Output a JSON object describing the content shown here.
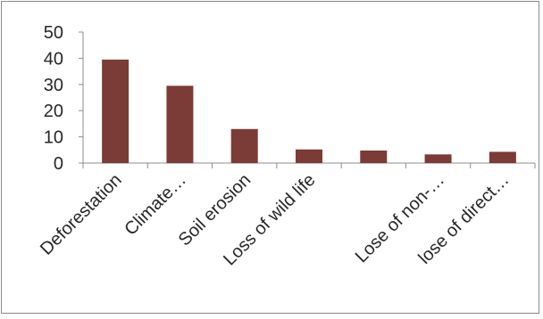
{
  "chart_data": {
    "type": "bar",
    "categories": [
      "Deforestation",
      "Climate…",
      "Soil erosion",
      "Loss of wild life",
      "",
      "Lose of non-…",
      "lose of direct…"
    ],
    "values": [
      39.5,
      29.5,
      13,
      5.2,
      4.8,
      3.3,
      4.3
    ],
    "title": "",
    "xlabel": "",
    "ylabel": "",
    "ylim": [
      0,
      50
    ],
    "yticks": [
      "0",
      "10",
      "20",
      "30",
      "40",
      "50"
    ],
    "grid": false,
    "legend": "none",
    "colors": {
      "bar": "#7b3b36",
      "axis": "#8c8c8c",
      "text": "#262626",
      "border": "#8a8a8a"
    }
  }
}
